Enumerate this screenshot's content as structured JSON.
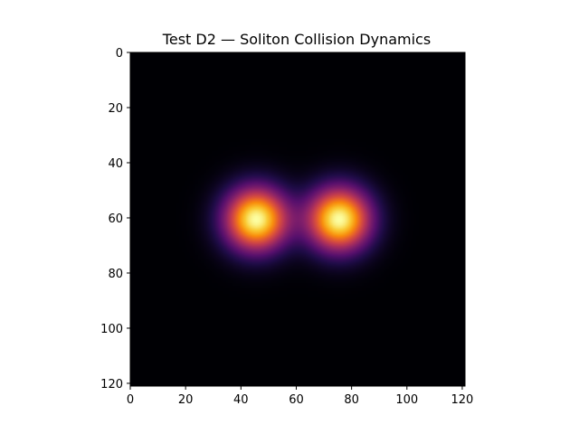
{
  "chart_data": {
    "type": "heatmap",
    "title": "Test D2 — Soliton Collision Dynamics",
    "xlabel": "",
    "ylabel": "",
    "colormap": "inferno",
    "grid": false,
    "xlim": [
      0,
      121
    ],
    "ylim": [
      121,
      0
    ],
    "x_ticks": [
      "0",
      "20",
      "40",
      "60",
      "80",
      "100",
      "120"
    ],
    "y_ticks": [
      "0",
      "20",
      "40",
      "60",
      "80",
      "100",
      "120"
    ],
    "x_tick_values": [
      0,
      20,
      40,
      60,
      80,
      100,
      120
    ],
    "y_tick_values": [
      0,
      20,
      40,
      60,
      80,
      100,
      120
    ],
    "grid_size": [
      121,
      121
    ],
    "peaks": [
      {
        "x": 45,
        "y": 60,
        "sigma": 8,
        "amplitude": 1.0
      },
      {
        "x": 75,
        "y": 60,
        "sigma": 8,
        "amplitude": 1.0
      }
    ],
    "background": "#000004"
  }
}
